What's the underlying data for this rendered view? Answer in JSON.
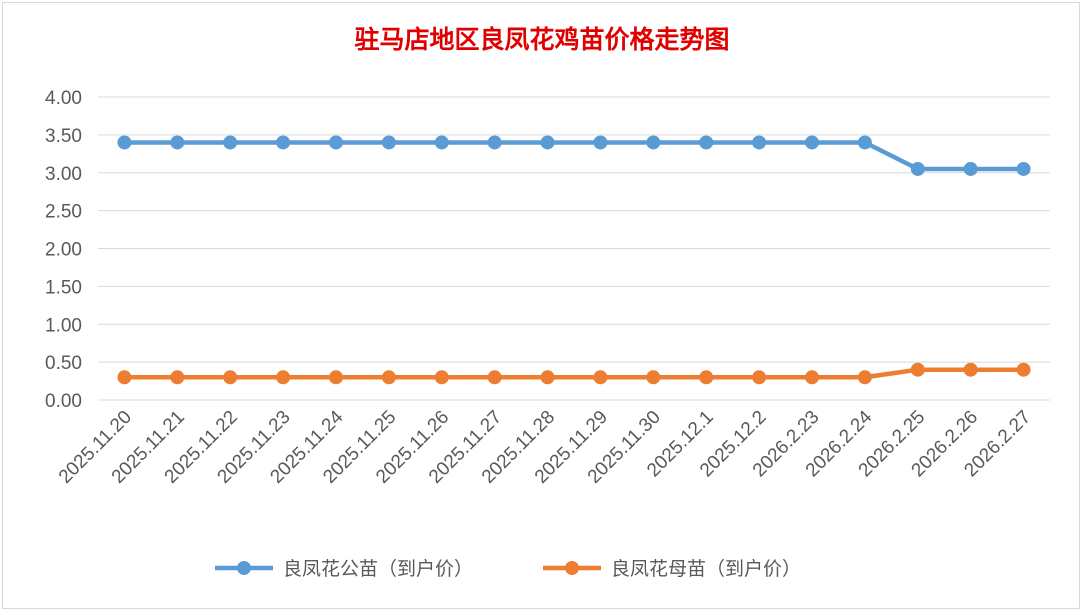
{
  "chart_data": {
    "type": "line",
    "title": "驻马店地区良凤花鸡苗价格走势图",
    "categories": [
      "2025.11.20",
      "2025.11.21",
      "2025.11.22",
      "2025.11.23",
      "2025.11.24",
      "2025.11.25",
      "2025.11.26",
      "2025.11.27",
      "2025.11.28",
      "2025.11.29",
      "2025.11.30",
      "2025.12.1",
      "2025.12.2",
      "2026.2.23",
      "2026.2.24",
      "2026.2.25",
      "2026.2.26",
      "2026.2.27"
    ],
    "series": [
      {
        "name": "良凤花公苗（到户价）",
        "color": "#5b9bd5",
        "values": [
          3.4,
          3.4,
          3.4,
          3.4,
          3.4,
          3.4,
          3.4,
          3.4,
          3.4,
          3.4,
          3.4,
          3.4,
          3.4,
          3.4,
          3.4,
          3.05,
          3.05,
          3.05
        ]
      },
      {
        "name": "良凤花母苗（到户价）",
        "color": "#ed7d31",
        "values": [
          0.3,
          0.3,
          0.3,
          0.3,
          0.3,
          0.3,
          0.3,
          0.3,
          0.3,
          0.3,
          0.3,
          0.3,
          0.3,
          0.3,
          0.3,
          0.4,
          0.4,
          0.4
        ]
      }
    ],
    "ylim": [
      0,
      4
    ],
    "yticks": [
      "0.00",
      "0.50",
      "1.00",
      "1.50",
      "2.00",
      "2.50",
      "3.00",
      "3.50",
      "4.00"
    ],
    "grid": true,
    "legend": "bottom"
  }
}
